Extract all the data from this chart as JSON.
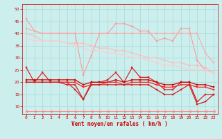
{
  "x": [
    0,
    1,
    2,
    3,
    4,
    5,
    6,
    7,
    8,
    9,
    10,
    11,
    12,
    13,
    14,
    15,
    16,
    17,
    18,
    19,
    20,
    21,
    22,
    23
  ],
  "series": [
    {
      "name": "line1_light_peak",
      "color": "#ff9999",
      "lw": 0.8,
      "marker": "s",
      "ms": 1.8,
      "y": [
        46,
        41,
        40,
        40,
        40,
        40,
        40,
        23,
        31,
        40,
        40,
        44,
        44,
        43,
        41,
        41,
        37,
        38,
        37,
        42,
        42,
        29,
        25,
        24
      ]
    },
    {
      "name": "line2_light_flat",
      "color": "#ffaaaa",
      "lw": 0.8,
      "marker": "s",
      "ms": 1.8,
      "y": [
        42,
        41,
        40,
        40,
        40,
        40,
        40,
        40,
        40,
        40,
        40,
        40,
        40,
        40,
        40,
        40,
        40,
        40,
        40,
        40,
        40,
        40,
        32,
        28
      ]
    },
    {
      "name": "line3_trend_down",
      "color": "#ffbbbb",
      "lw": 0.8,
      "marker": "s",
      "ms": 1.8,
      "y": [
        40,
        39,
        37,
        37,
        37,
        36,
        36,
        36,
        35,
        34,
        34,
        33,
        33,
        32,
        31,
        30,
        30,
        29,
        28,
        28,
        27,
        27,
        26,
        24
      ]
    },
    {
      "name": "line4_pink_diagonal",
      "color": "#ffcccc",
      "lw": 0.8,
      "marker": "s",
      "ms": 1.8,
      "y": [
        38,
        37,
        37,
        37,
        37,
        36,
        35,
        34,
        33,
        33,
        32,
        32,
        31,
        30,
        30,
        29,
        28,
        27,
        27,
        26,
        25,
        25,
        25,
        24
      ]
    },
    {
      "name": "line5_red_zigzag",
      "color": "#dd2222",
      "lw": 0.9,
      "marker": "s",
      "ms": 1.8,
      "y": [
        26,
        20,
        24,
        20,
        20,
        20,
        17,
        13,
        20,
        20,
        21,
        24,
        20,
        26,
        22,
        22,
        20,
        17,
        17,
        20,
        20,
        12,
        15,
        15
      ]
    },
    {
      "name": "line6_red_flat1",
      "color": "#cc0000",
      "lw": 0.9,
      "marker": "s",
      "ms": 1.8,
      "y": [
        21,
        21,
        21,
        21,
        21,
        21,
        21,
        19,
        20,
        20,
        20,
        21,
        20,
        21,
        21,
        21,
        20,
        19,
        19,
        20,
        20,
        19,
        19,
        18
      ]
    },
    {
      "name": "line7_red_flat2",
      "color": "#ff2222",
      "lw": 0.9,
      "marker": "s",
      "ms": 1.8,
      "y": [
        20,
        20,
        20,
        20,
        20,
        20,
        20,
        18,
        19,
        19,
        20,
        20,
        19,
        20,
        20,
        20,
        19,
        18,
        18,
        19,
        19,
        18,
        18,
        17
      ]
    },
    {
      "name": "line8_red_low",
      "color": "#cc2222",
      "lw": 0.9,
      "marker": "s",
      "ms": 1.8,
      "y": [
        20,
        20,
        20,
        20,
        20,
        19,
        19,
        13,
        19,
        19,
        19,
        19,
        19,
        19,
        19,
        19,
        17,
        15,
        15,
        17,
        19,
        11,
        12,
        15
      ]
    },
    {
      "name": "bottom_arrow_line",
      "color": "#ff8888",
      "lw": 0.7,
      "marker": "<",
      "ms": 2.5,
      "y": [
        8,
        8,
        8,
        8,
        8,
        8,
        8,
        8,
        8,
        8,
        8,
        8,
        8,
        8,
        8,
        8,
        8,
        8,
        8,
        8,
        8,
        8,
        8,
        8
      ]
    }
  ],
  "xlabel": "Vent moyen/en rafales ( km/h )",
  "xlim": [
    -0.5,
    23.5
  ],
  "ylim": [
    7,
    52
  ],
  "yticks": [
    10,
    15,
    20,
    25,
    30,
    35,
    40,
    45,
    50
  ],
  "xticks": [
    0,
    1,
    2,
    3,
    4,
    5,
    6,
    7,
    8,
    9,
    10,
    11,
    12,
    13,
    14,
    15,
    16,
    17,
    18,
    19,
    20,
    21,
    22,
    23
  ],
  "bg_color": "#cceeed",
  "grid_color": "#aadddd",
  "tick_color": "#cc0000",
  "label_color": "#cc0000"
}
